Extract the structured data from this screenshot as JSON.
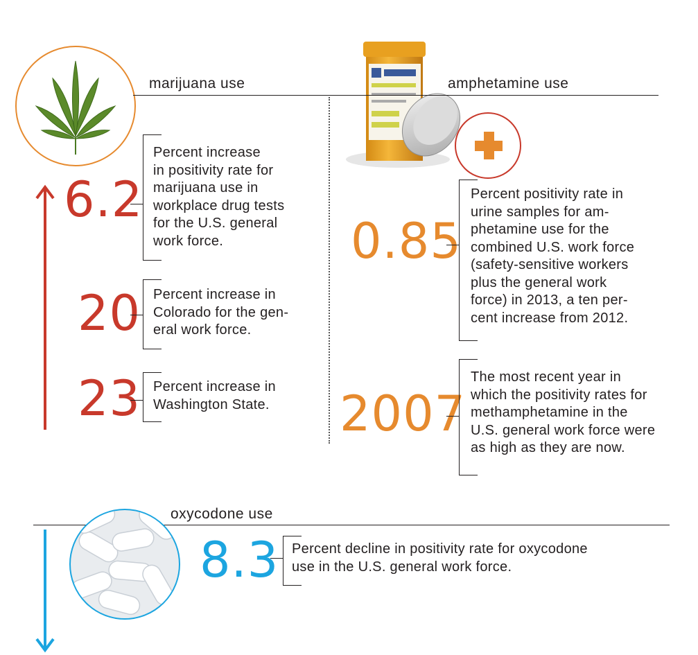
{
  "colors": {
    "red": "#c8392b",
    "orange": "#e68a2e",
    "blue": "#1ca5e0",
    "line": "#231f20"
  },
  "marijuana": {
    "label": "marijuana use",
    "icon": "cannabis-leaf-icon",
    "stats": [
      {
        "value": "6.2",
        "desc_lines": [
          "Percent increase",
          "in positivity rate for",
          "marijuana use in",
          "workplace drug tests",
          "for the U.S. general",
          "work force."
        ]
      },
      {
        "value": "20",
        "desc_lines": [
          "Percent increase in",
          "Colorado for the gen-",
          "eral work force."
        ]
      },
      {
        "value": "23",
        "desc_lines": [
          "Percent increase in",
          "Washington State."
        ]
      }
    ]
  },
  "amphetamine": {
    "label": "amphetamine use",
    "icon": "pill-bottle-icon",
    "stats": [
      {
        "value": "0.85",
        "desc_lines": [
          "Percent positivity rate in",
          "urine samples for am-",
          "phetamine use for the",
          "combined U.S. work force",
          "(safety-sensitive workers",
          "plus the general work",
          "force) in 2013, a ten per-",
          "cent increase from 2012."
        ]
      },
      {
        "value": "2007",
        "desc_lines": [
          "The most recent year in",
          "which the positivity rates for",
          "methamphetamine in the",
          "U.S. general work force were",
          "as high as they are now."
        ]
      }
    ]
  },
  "oxycodone": {
    "label": "oxycodone use",
    "icon": "pills-icon",
    "stats": [
      {
        "value": "8.3",
        "desc_lines": [
          "Percent decline in positivity rate for oxycodone",
          "use in the U.S. general work force."
        ]
      }
    ]
  }
}
